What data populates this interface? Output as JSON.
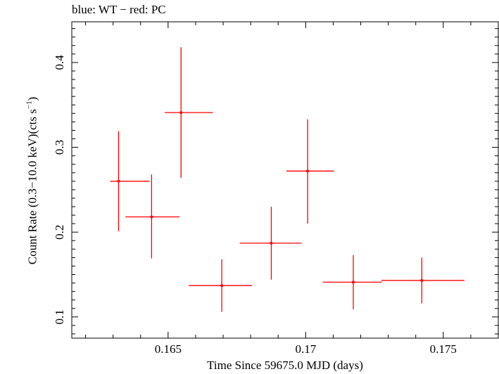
{
  "chart_data": {
    "type": "scatter",
    "title": "blue: WT − red: PC",
    "xlabel": "Time Since 59675.0 MJD (days)",
    "ylabel_main": "Count Rate (0.3−10.0 keV)(cts s",
    "ylabel_exp": "−1",
    "ylabel_close": ")",
    "xlim": [
      0.1615,
      0.177
    ],
    "ylim": [
      0.075,
      0.448
    ],
    "xticks": [
      0.165,
      0.17,
      0.175
    ],
    "xtick_labels": [
      "0.165",
      "0.17",
      "0.175"
    ],
    "yticks": [
      0.1,
      0.2,
      0.3,
      0.4
    ],
    "ytick_labels": [
      "0.1",
      "0.2",
      "0.3",
      "0.4"
    ],
    "grid": false,
    "series": [
      {
        "color": "#ff0000",
        "points": [
          {
            "x": 0.1632,
            "xlo": 0.1629,
            "xhi": 0.16433,
            "y": 0.26,
            "ylo": 0.201,
            "yhi": 0.319
          },
          {
            "x": 0.1644,
            "xlo": 0.16345,
            "xhi": 0.16542,
            "y": 0.218,
            "ylo": 0.169,
            "yhi": 0.268
          },
          {
            "x": 0.16547,
            "xlo": 0.16488,
            "xhi": 0.16663,
            "y": 0.341,
            "ylo": 0.264,
            "yhi": 0.418
          },
          {
            "x": 0.16695,
            "xlo": 0.16575,
            "xhi": 0.16805,
            "y": 0.137,
            "ylo": 0.106,
            "yhi": 0.168
          },
          {
            "x": 0.16875,
            "xlo": 0.1676,
            "xhi": 0.16985,
            "y": 0.187,
            "ylo": 0.144,
            "yhi": 0.23
          },
          {
            "x": 0.17007,
            "xlo": 0.1693,
            "xhi": 0.17103,
            "y": 0.272,
            "ylo": 0.21,
            "yhi": 0.333
          },
          {
            "x": 0.17173,
            "xlo": 0.17062,
            "xhi": 0.17277,
            "y": 0.141,
            "ylo": 0.109,
            "yhi": 0.173
          },
          {
            "x": 0.17422,
            "xlo": 0.17275,
            "xhi": 0.17577,
            "y": 0.143,
            "ylo": 0.116,
            "yhi": 0.17
          }
        ]
      }
    ]
  }
}
